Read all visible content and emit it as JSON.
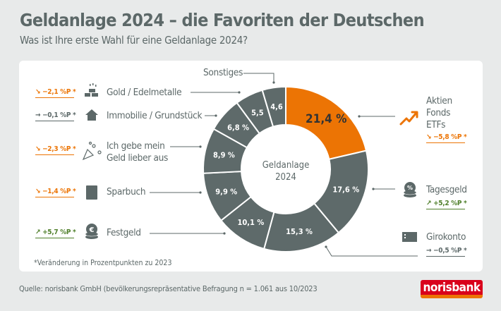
{
  "title": "Geldanlage 2024 – die Favoriten der Deutschen",
  "subtitle": "Was ist Ihre erste Wahl für eine Geldanlage 2024?",
  "footnote": "*Veränderung in Prozentpunkten zu 2023",
  "source": "Quelle: norisbank GmbH (bevölkerungsrepräsentative Befragung n = 1.061 aus 10/2023",
  "logo": "norisbank",
  "colors": {
    "accent": "#ec7404",
    "segment": "#5e6a6a",
    "up": "#4f7f2a",
    "down": "#ec7404",
    "neutral": "#5c6868",
    "brand": "#d9001b"
  },
  "chart_data": {
    "type": "pie",
    "donut": true,
    "center_label": [
      "Geldanlage",
      "2024"
    ],
    "unit": "%",
    "categories": [
      "Aktien Fonds ETFs",
      "Tagesgeld",
      "Girokonto",
      "Festgeld",
      "Sparbuch",
      "Ich gebe mein Geld lieber aus",
      "Immobilie / Grundstück",
      "Gold / Edelmetalle",
      "Sonstiges"
    ],
    "values": [
      21.4,
      17.6,
      15.3,
      10.1,
      9.9,
      8.9,
      6.8,
      5.5,
      4.6
    ],
    "value_labels": [
      "21,4 %",
      "17,6 %",
      "15,3 %",
      "10,1 %",
      "9,9 %",
      "8,9 %",
      "6,8 %",
      "5,5",
      "4,6"
    ],
    "highlight": "Aktien Fonds ETFs",
    "changes_vs_2023_pp": [
      -5.8,
      5.2,
      -0.5,
      5.7,
      -1.4,
      -2.3,
      -0.1,
      -2.1,
      null
    ]
  },
  "legend": {
    "aktien": {
      "lines": [
        "Aktien",
        "Fonds",
        "ETFs"
      ],
      "change": "↘ −5,8 %P *",
      "icon": "trending-up-icon"
    },
    "tagesgeld": {
      "label": "Tagesgeld",
      "change": "↗ +5,2 %P *",
      "icon": "percent-coins-icon"
    },
    "girokonto": {
      "label": "Girokonto",
      "change": "→ −0,5 %P *",
      "icon": "card-icon"
    },
    "festgeld": {
      "label": "Festgeld",
      "change": "↗ +5,7 %P *",
      "icon": "euro-coins-icon"
    },
    "sparbuch": {
      "label": "Sparbuch",
      "change": "↘ −1,4 %P *",
      "icon": "book-icon"
    },
    "ausgeben": {
      "lines": [
        "Ich gebe mein",
        "Geld lieber aus"
      ],
      "change": "↘ −2,3 %P *",
      "icon": "party-popper-icon"
    },
    "immobilie": {
      "label": "Immobilie / Grundstück",
      "change": "→ −0,1 %P *",
      "icon": "house-icon"
    },
    "gold": {
      "label": "Gold / Edelmetalle",
      "change": "↘ −2,1 %P *",
      "icon": "gold-bars-icon"
    },
    "sonstiges": {
      "label": "Sonstiges"
    }
  }
}
